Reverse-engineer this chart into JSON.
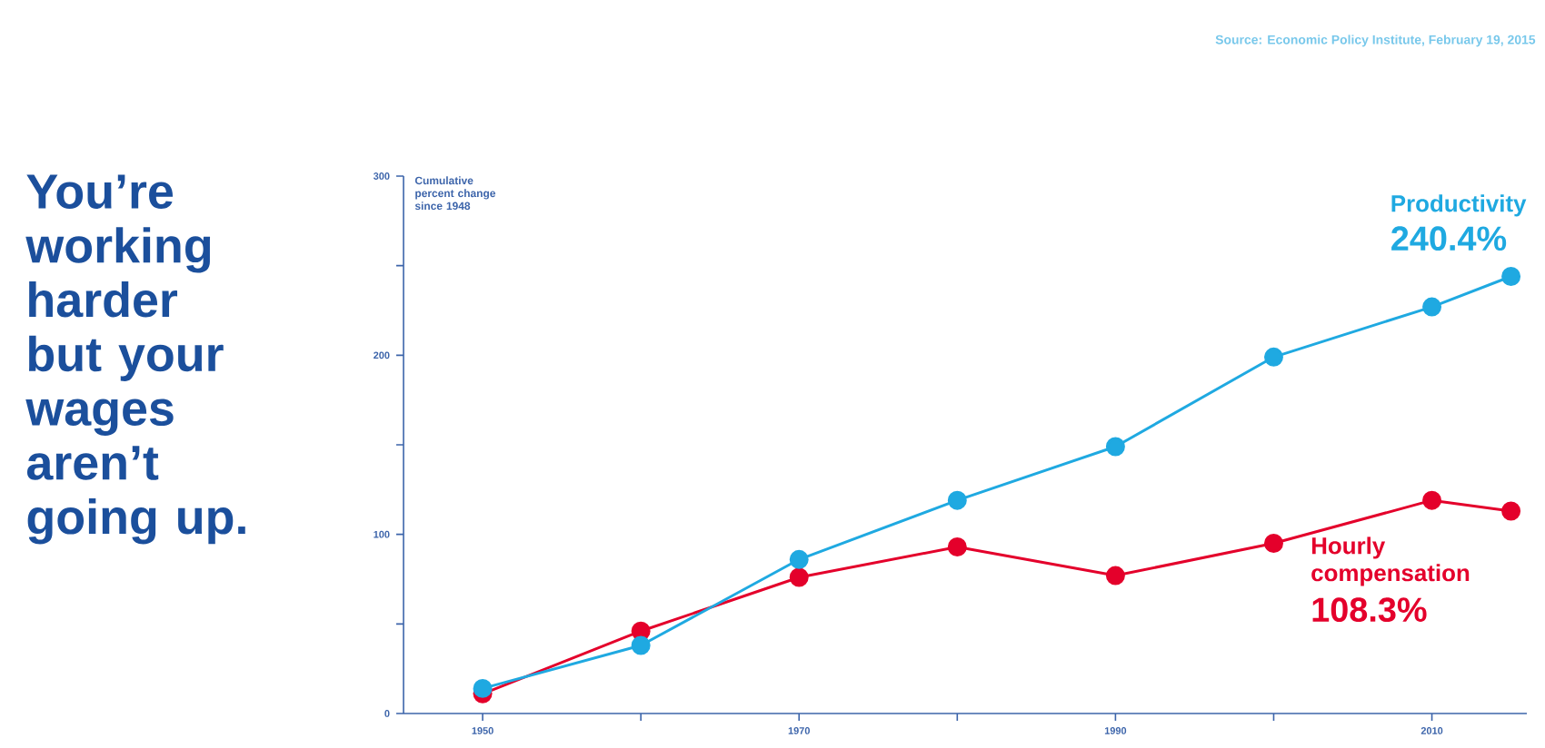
{
  "chart_data": {
    "type": "line",
    "title": "You’re working harder but your wages aren’t going up.",
    "ylabel": "Cumulative percent change since 1948",
    "annotations": [
      "Source: Economic Policy Institute, February 19, 2015",
      "240.4%",
      "108.3%"
    ],
    "x": [
      1950,
      1960,
      1970,
      1980,
      1990,
      2000,
      2010,
      2015
    ],
    "series": [
      {
        "name": "Productivity",
        "color": "#1fa9e1",
        "values": [
          14,
          38,
          86,
          119,
          149,
          199,
          227,
          244
        ]
      },
      {
        "name": "Hourly compensation",
        "color": "#e4002b",
        "values": [
          11,
          46,
          76,
          93,
          77,
          95,
          119,
          113
        ]
      }
    ],
    "xlim": [
      1945,
      2016
    ],
    "xticks": [
      1950,
      {
        "value": 1960,
        "label": null
      },
      1970,
      {
        "value": 1980,
        "label": null
      },
      1990,
      {
        "value": 2000,
        "label": null
      },
      2010
    ],
    "ylim": [
      0,
      300
    ],
    "yticks": [
      0,
      {
        "value": 50,
        "label": null
      },
      100,
      {
        "value": 150,
        "label": null
      },
      200,
      {
        "value": 250,
        "label": null
      },
      300
    ],
    "grid": false,
    "legend": false,
    "marker": "circle",
    "line_style": "solid"
  }
}
